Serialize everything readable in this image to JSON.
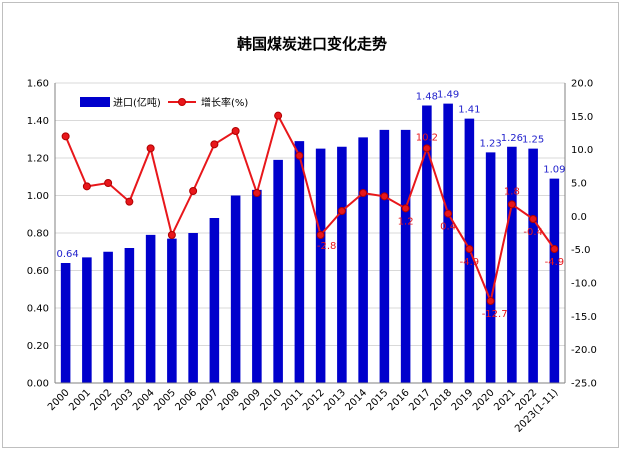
{
  "chart_data": {
    "type": "bar+line",
    "title": "韩国煤炭进口变化走势",
    "categories": [
      "2000",
      "2001",
      "2002",
      "2003",
      "2004",
      "2005",
      "2006",
      "2007",
      "2008",
      "2009",
      "2010",
      "2011",
      "2012",
      "2013",
      "2014",
      "2015",
      "2016",
      "2017",
      "2018",
      "2019",
      "2020",
      "2021",
      "2022",
      "2023(1-11)"
    ],
    "series": [
      {
        "name": "进口(亿吨)",
        "type": "bar",
        "axis": "left",
        "color": "#0000cc",
        "values": [
          0.64,
          0.67,
          0.7,
          0.72,
          0.79,
          0.77,
          0.8,
          0.88,
          1.0,
          1.03,
          1.19,
          1.29,
          1.25,
          1.26,
          1.31,
          1.35,
          1.35,
          1.48,
          1.49,
          1.41,
          1.23,
          1.26,
          1.25,
          1.09
        ],
        "labels": [
          {
            "index": 0,
            "text": "0.64"
          },
          {
            "index": 17,
            "text": "1.48"
          },
          {
            "index": 18,
            "text": "1.49"
          },
          {
            "index": 19,
            "text": "1.41"
          },
          {
            "index": 20,
            "text": "1.23"
          },
          {
            "index": 21,
            "text": "1.26"
          },
          {
            "index": 22,
            "text": "1.25"
          },
          {
            "index": 23,
            "text": "1.09"
          }
        ]
      },
      {
        "name": "增长率(%)",
        "type": "line",
        "axis": "right",
        "color": "#e8171b",
        "values": [
          12.0,
          4.5,
          5.0,
          2.2,
          10.2,
          -2.8,
          3.8,
          10.8,
          12.8,
          3.5,
          15.1,
          9.1,
          -2.8,
          0.8,
          3.5,
          3.0,
          1.2,
          10.2,
          0.4,
          -4.9,
          -12.7,
          1.8,
          -0.4,
          -4.9
        ],
        "labels": [
          {
            "index": 12,
            "text": "-2.8"
          },
          {
            "index": 16,
            "text": "1.2"
          },
          {
            "index": 17,
            "text": "10.2"
          },
          {
            "index": 18,
            "text": "0.4"
          },
          {
            "index": 19,
            "text": "-4.9"
          },
          {
            "index": 20,
            "text": "-12.7"
          },
          {
            "index": 21,
            "text": "1.8"
          },
          {
            "index": 22,
            "text": "-0.4"
          },
          {
            "index": 23,
            "text": "-4.9"
          }
        ]
      }
    ],
    "y_left": {
      "min": 0,
      "max": 1.6,
      "step": 0.2,
      "ticks": [
        "0.00",
        "0.20",
        "0.40",
        "0.60",
        "0.80",
        "1.00",
        "1.20",
        "1.40",
        "1.60"
      ]
    },
    "y_right": {
      "min": -25,
      "max": 20,
      "step": 5,
      "ticks": [
        "-25.0",
        "-20.0",
        "-15.0",
        "-10.0",
        "-5.0",
        "0.0",
        "5.0",
        "10.0",
        "15.0",
        "20.0"
      ]
    },
    "grid": true,
    "legend": "top-left"
  }
}
